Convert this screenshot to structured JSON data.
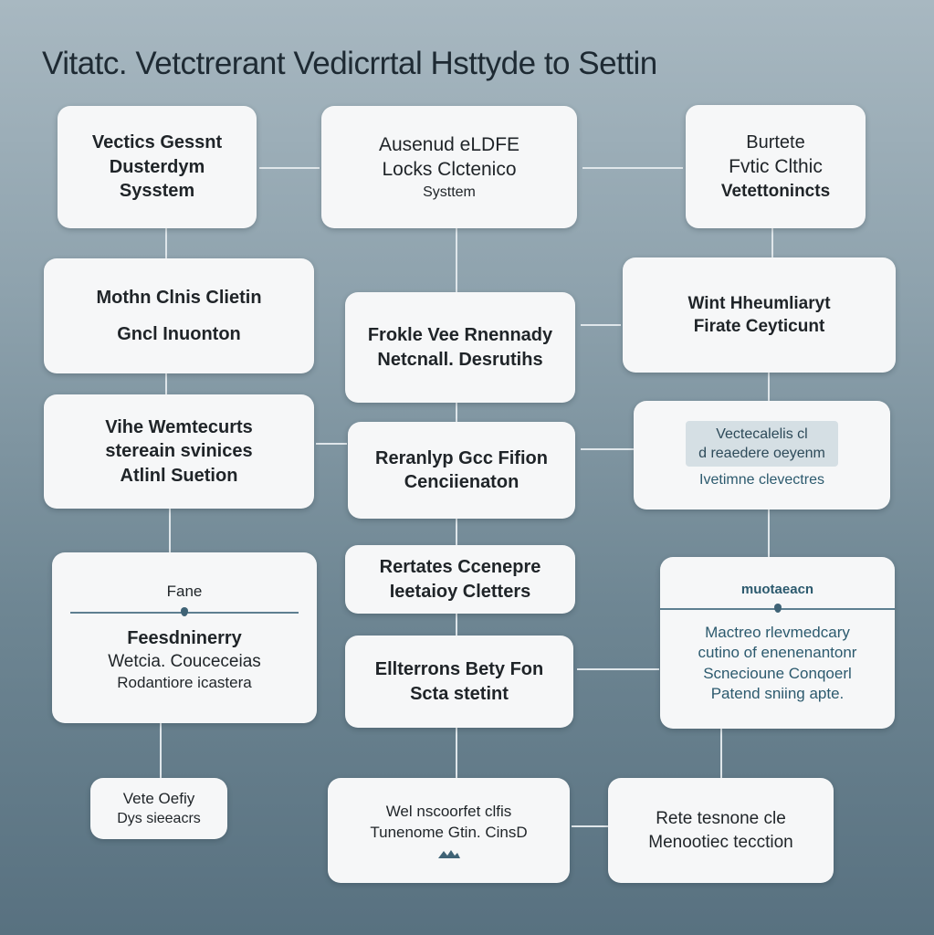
{
  "title": "Vitatc. Vetctrerant Vedicrrtal Hsttyde to Settin",
  "colors": {
    "box": "#f6f7f8",
    "connector": "#dfe6ea",
    "accent": "#2c5a6e"
  },
  "left": [
    {
      "lines": [
        "Vectics Gessnt",
        "Dusterdym",
        "Sysstem"
      ]
    },
    {
      "lines": [
        "Mothn Clnis Clietin",
        "Gncl Inuonton"
      ]
    },
    {
      "lines": [
        "Vihe Wemtecurts",
        "stereain svinices",
        "Atlinl Suetion"
      ]
    },
    {
      "header": "Fane",
      "lines": [
        "Feesdninerry",
        "Wetcia. Couceceias",
        "Rodantiore icastera"
      ]
    },
    {
      "lines": [
        "Vete Oefiy",
        "Dys sieeacrs"
      ]
    }
  ],
  "center": [
    {
      "lines": [
        "Ausenud eLDFE",
        "Locks Clctenico",
        "Systtem"
      ]
    },
    {
      "lines": [
        "Frokle Vee Rnennady",
        "Netcnall. Desrutihs"
      ]
    },
    {
      "lines": [
        "Reranlyp Gcc Fifion",
        "Cenciienaton"
      ]
    },
    {
      "lines": [
        "Rertates Ccenepre",
        "Ieetaioy Cletters"
      ]
    },
    {
      "lines": [
        "Ellterrons Bety Fon",
        "Scta stetint"
      ]
    },
    {
      "lines": [
        "Wel nscoorfet clfis",
        "Tunenome Gtin. CinsD"
      ]
    }
  ],
  "right": [
    {
      "lines": [
        "Burtete",
        "Fvtic Clthic",
        "Vetettonincts"
      ]
    },
    {
      "lines": [
        "Wint Hheumliaryt",
        "Firate Ceyticunt"
      ]
    },
    {
      "highlight": [
        "Vectecalelis cl",
        "d reaedere oeyenm"
      ],
      "lines": [
        "Ivetimne clevectres"
      ]
    },
    {
      "header": "muotaeacn",
      "lines": [
        "Mactreo rlevmedcary",
        "cutino of enenenantonr",
        "Scnecioune Conqoerl",
        "Patend sniing apte."
      ]
    },
    {
      "lines": [
        "Rete tesnone cle",
        "Menootiec tecction"
      ]
    }
  ]
}
